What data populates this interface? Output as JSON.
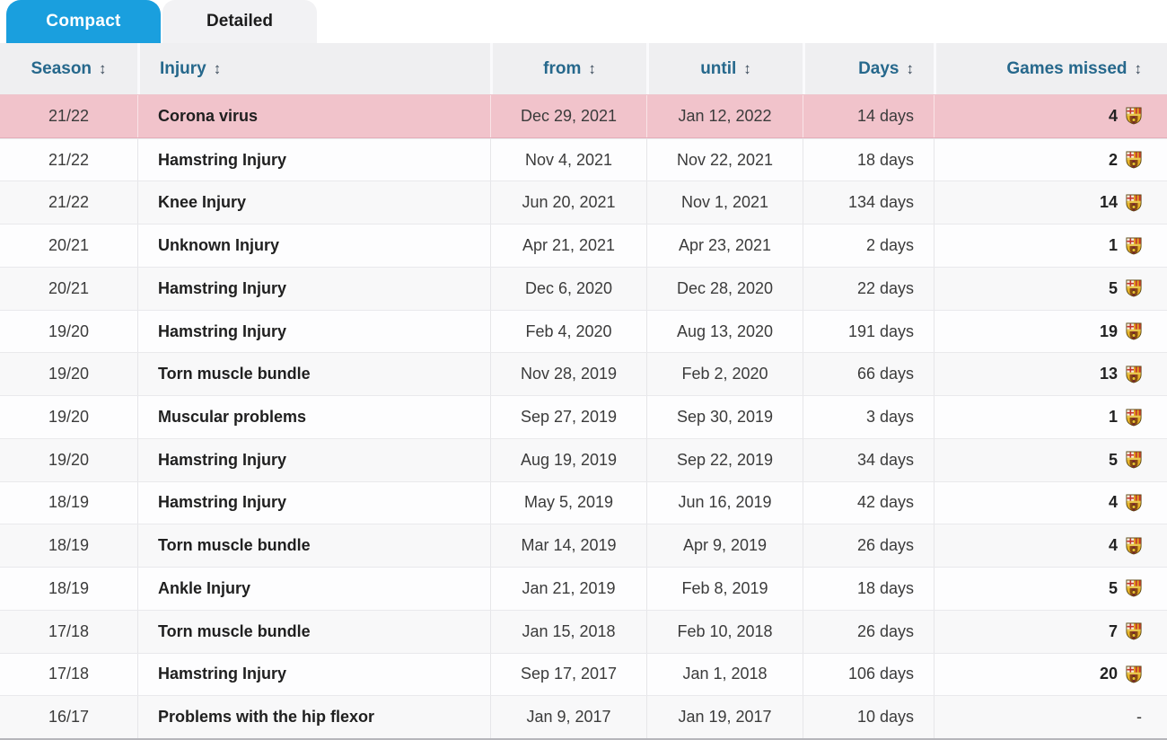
{
  "tabs": [
    {
      "label": "Compact",
      "active": true
    },
    {
      "label": "Detailed",
      "active": false
    }
  ],
  "table": {
    "sort_icon": "↕",
    "columns": [
      {
        "key": "season",
        "label": "Season"
      },
      {
        "key": "injury",
        "label": "Injury"
      },
      {
        "key": "from",
        "label": "from"
      },
      {
        "key": "until",
        "label": "until"
      },
      {
        "key": "days",
        "label": "Days"
      },
      {
        "key": "games_missed",
        "label": "Games missed"
      }
    ],
    "rows": [
      {
        "season": "21/22",
        "injury": "Corona virus",
        "from": "Dec 29, 2021",
        "until": "Jan 12, 2022",
        "days": "14 days",
        "games_missed": "4",
        "badge": true,
        "highlight": true
      },
      {
        "season": "21/22",
        "injury": "Hamstring Injury",
        "from": "Nov 4, 2021",
        "until": "Nov 22, 2021",
        "days": "18 days",
        "games_missed": "2",
        "badge": true,
        "highlight": false
      },
      {
        "season": "21/22",
        "injury": "Knee Injury",
        "from": "Jun 20, 2021",
        "until": "Nov 1, 2021",
        "days": "134 days",
        "games_missed": "14",
        "badge": true,
        "highlight": false
      },
      {
        "season": "20/21",
        "injury": "Unknown Injury",
        "from": "Apr 21, 2021",
        "until": "Apr 23, 2021",
        "days": "2 days",
        "games_missed": "1",
        "badge": true,
        "highlight": false
      },
      {
        "season": "20/21",
        "injury": "Hamstring Injury",
        "from": "Dec 6, 2020",
        "until": "Dec 28, 2020",
        "days": "22 days",
        "games_missed": "5",
        "badge": true,
        "highlight": false
      },
      {
        "season": "19/20",
        "injury": "Hamstring Injury",
        "from": "Feb 4, 2020",
        "until": "Aug 13, 2020",
        "days": "191 days",
        "games_missed": "19",
        "badge": true,
        "highlight": false
      },
      {
        "season": "19/20",
        "injury": "Torn muscle bundle",
        "from": "Nov 28, 2019",
        "until": "Feb 2, 2020",
        "days": "66 days",
        "games_missed": "13",
        "badge": true,
        "highlight": false
      },
      {
        "season": "19/20",
        "injury": "Muscular problems",
        "from": "Sep 27, 2019",
        "until": "Sep 30, 2019",
        "days": "3 days",
        "games_missed": "1",
        "badge": true,
        "highlight": false
      },
      {
        "season": "19/20",
        "injury": "Hamstring Injury",
        "from": "Aug 19, 2019",
        "until": "Sep 22, 2019",
        "days": "34 days",
        "games_missed": "5",
        "badge": true,
        "highlight": false
      },
      {
        "season": "18/19",
        "injury": "Hamstring Injury",
        "from": "May 5, 2019",
        "until": "Jun 16, 2019",
        "days": "42 days",
        "games_missed": "4",
        "badge": true,
        "highlight": false
      },
      {
        "season": "18/19",
        "injury": "Torn muscle bundle",
        "from": "Mar 14, 2019",
        "until": "Apr 9, 2019",
        "days": "26 days",
        "games_missed": "4",
        "badge": true,
        "highlight": false
      },
      {
        "season": "18/19",
        "injury": "Ankle Injury",
        "from": "Jan 21, 2019",
        "until": "Feb 8, 2019",
        "days": "18 days",
        "games_missed": "5",
        "badge": true,
        "highlight": false
      },
      {
        "season": "17/18",
        "injury": "Torn muscle bundle",
        "from": "Jan 15, 2018",
        "until": "Feb 10, 2018",
        "days": "26 days",
        "games_missed": "7",
        "badge": true,
        "highlight": false
      },
      {
        "season": "17/18",
        "injury": "Hamstring Injury",
        "from": "Sep 17, 2017",
        "until": "Jan 1, 2018",
        "days": "106 days",
        "games_missed": "20",
        "badge": true,
        "highlight": false
      },
      {
        "season": "16/17",
        "injury": "Problems with the hip flexor",
        "from": "Jan 9, 2017",
        "until": "Jan 19, 2017",
        "days": "10 days",
        "games_missed": "-",
        "badge": false,
        "highlight": false
      }
    ]
  },
  "icons": {
    "club_badge": "club-badge",
    "sort": "sort-arrows"
  },
  "colors": {
    "tab_active_bg": "#1a9fde",
    "tab_active_text": "#ffffff",
    "header_text": "#26688c",
    "highlight_row_bg": "#f1c3cb",
    "row_bg_even": "#fdfdfe",
    "row_bg_odd": "#f8f8f9"
  }
}
